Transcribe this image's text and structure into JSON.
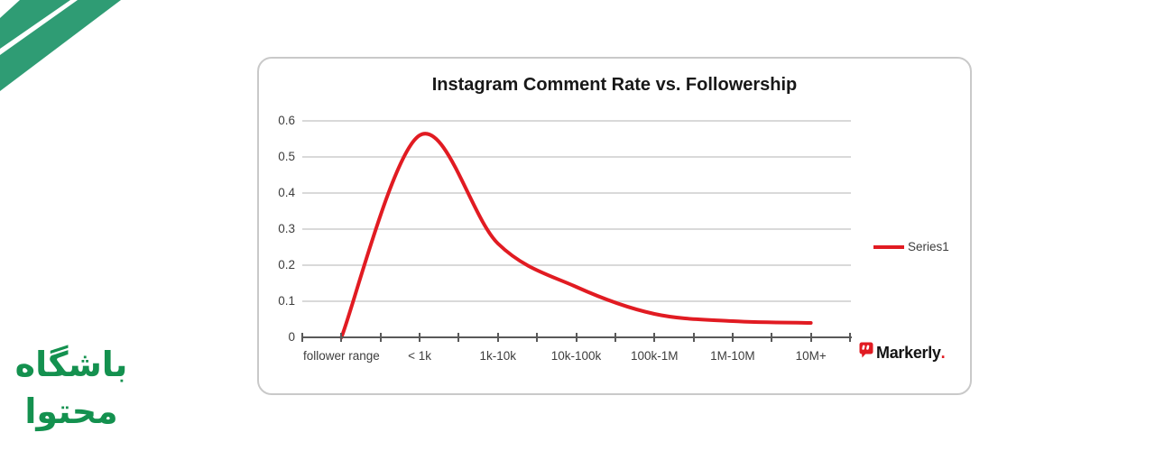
{
  "decorations": {
    "corner_stripes": {
      "icon": "diagonal-stripes",
      "color": "#2f9c74"
    },
    "site_logo": {
      "line1": "باشگاه",
      "line2": "محتوا",
      "color": "#14914f"
    }
  },
  "chart_data": {
    "type": "line",
    "title": "Instagram Comment Rate vs. Followership",
    "categories": [
      "follower range",
      "< 1k",
      "1k-10k",
      "10k-100k",
      "100k-1M",
      "1M-10M",
      "10M+"
    ],
    "xlabel": "",
    "ylabel": "",
    "ylim": [
      0,
      0.6
    ],
    "yticks": [
      0,
      0.1,
      0.2,
      0.3,
      0.4,
      0.5,
      0.6
    ],
    "grid": true,
    "smooth": true,
    "legend_position": "right",
    "series": [
      {
        "name": "Series1",
        "color": "#e11b22",
        "values": [
          0,
          0.56,
          0.26,
          0.14,
          0.065,
          0.045,
          0.04
        ]
      }
    ]
  },
  "branding": {
    "name": "Markerly",
    "suffix": ".",
    "icon": "speech-bubble-quotes-icon",
    "accent": "#e11b22"
  }
}
